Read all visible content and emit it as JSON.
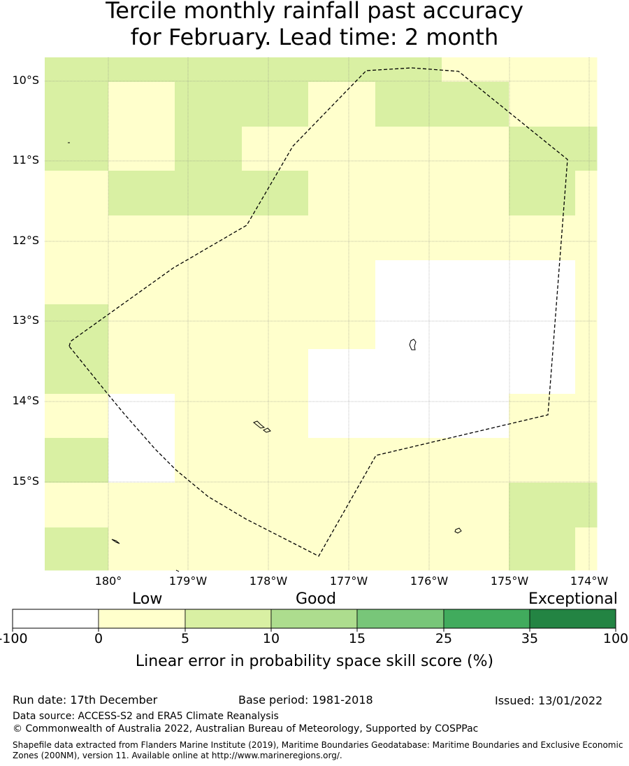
{
  "title": {
    "line1": "Tercile monthly rainfall past accuracy",
    "line2": "for February. Lead time: 2 month"
  },
  "map": {
    "lat_labels": [
      "10°S",
      "11°S",
      "12°S",
      "13°S",
      "14°S",
      "15°S"
    ],
    "lon_labels": [
      "180°",
      "179°W",
      "178°W",
      "177°W",
      "176°W",
      "175°W",
      "174°W"
    ],
    "colors": {
      "none": "#ffffff",
      "low": "#ffffcc",
      "good": "#d9f0a3",
      "boundary": "#000000",
      "grid": "#808080"
    }
  },
  "colorbar": {
    "category_labels": [
      "Low",
      "Good",
      "Exceptional"
    ],
    "tick_labels": [
      "-100",
      "0",
      "5",
      "10",
      "15",
      "25",
      "35",
      "100"
    ],
    "colors": [
      "#ffffff",
      "#ffffcc",
      "#d9f0a3",
      "#addd8e",
      "#78c679",
      "#41ab5d",
      "#238443"
    ],
    "title": "Linear error in probability space skill score (%)"
  },
  "footer": {
    "run_date": "Run date: 17th December",
    "base_period": "Base period: 1981-2018",
    "issued": "Issued: 13/01/2022",
    "data_source": "Data source: ACCESS-S2 and ERA5 Climate Reanalysis",
    "copyright": "© Commonwealth of Australia 2022, Australian Bureau of Meteorology, Supported by COSPPac",
    "shapefile_line1": "Shapefile data extracted from Flanders Marine Institute (2019), Maritime Boundaries Geodatabase: Maritime Boundaries and Exclusive Economic",
    "shapefile_line2": "Zones (200NM), version 11. Available online at http://www.marineregions.org/."
  }
}
